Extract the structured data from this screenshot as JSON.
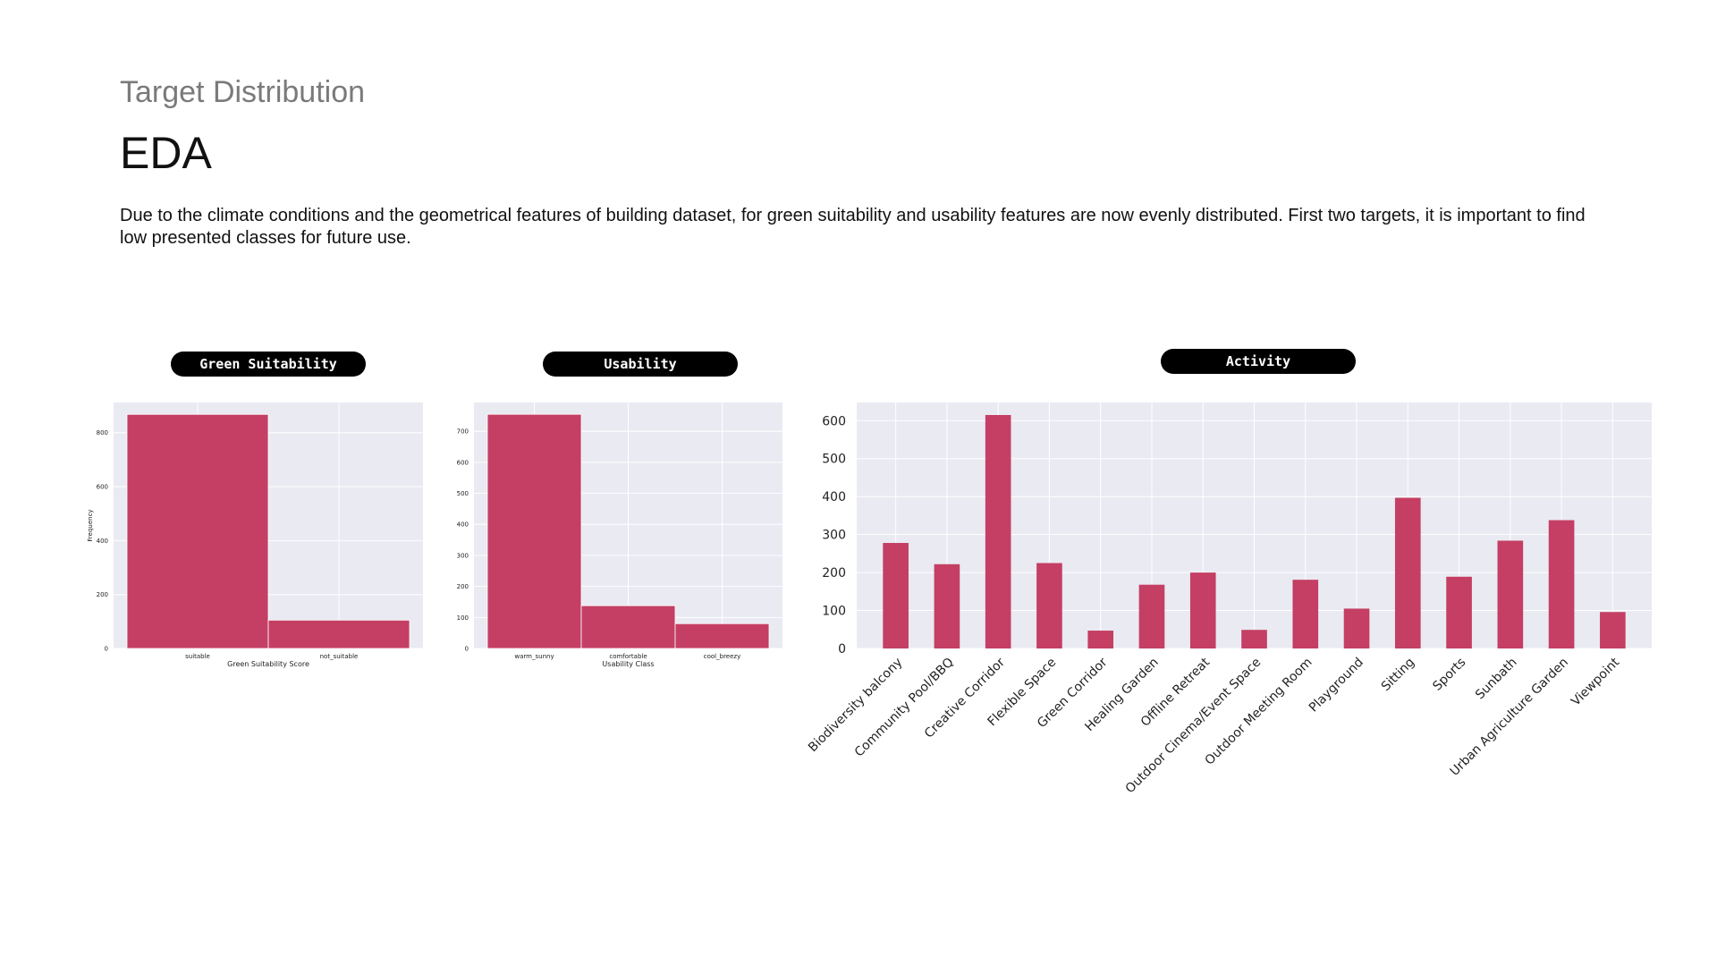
{
  "slide": {
    "subtitle": "Target Distribution",
    "title": "EDA",
    "description": "Due to the climate conditions and the geometrical features of building dataset, for green suitability and usability features are now evenly distributed. First two targets, it is important to find low presented classes for future use."
  },
  "colors": {
    "bar": "#c43f63",
    "plot_bg": "#eaeaf2",
    "grid": "#ffffff"
  },
  "chart_data": [
    {
      "type": "bar",
      "label": "Green Suitability",
      "categories": [
        "suitable",
        "not_suitable"
      ],
      "values": [
        868,
        105
      ],
      "xlabel": "Green Suitability Score",
      "ylabel": "Frequency",
      "yticks": [
        0,
        200,
        400,
        600,
        800
      ],
      "ylim": [
        0,
        912
      ],
      "grid": true
    },
    {
      "type": "bar",
      "label": "Usability",
      "categories": [
        "warm_sunny",
        "comfortable",
        "cool_breezy"
      ],
      "values": [
        755,
        138,
        80
      ],
      "xlabel": "Usability Class",
      "ylabel": "",
      "yticks": [
        0,
        100,
        200,
        300,
        400,
        500,
        600,
        700
      ],
      "ylim": [
        0,
        793
      ],
      "grid": true
    },
    {
      "type": "bar",
      "label": "Activity",
      "categories": [
        "Biodiversity balcony",
        "Community Pool/BBQ",
        "Creative Corridor",
        "Flexible Space",
        "Green Corridor",
        "Healing Garden",
        "Offline Retreat",
        "Outdoor Cinema/Event Space",
        "Outdoor Meeting Room",
        "Playground",
        "Sitting",
        "Sports",
        "Sunbath",
        "Urban Agriculture Garden",
        "Viewpoint"
      ],
      "values": [
        278,
        222,
        615,
        225,
        47,
        168,
        200,
        49,
        181,
        105,
        397,
        189,
        284,
        338,
        96
      ],
      "xlabel": "",
      "ylabel": "",
      "yticks": [
        0,
        100,
        200,
        300,
        400,
        500,
        600
      ],
      "ylim": [
        0,
        648
      ],
      "grid": true
    }
  ]
}
